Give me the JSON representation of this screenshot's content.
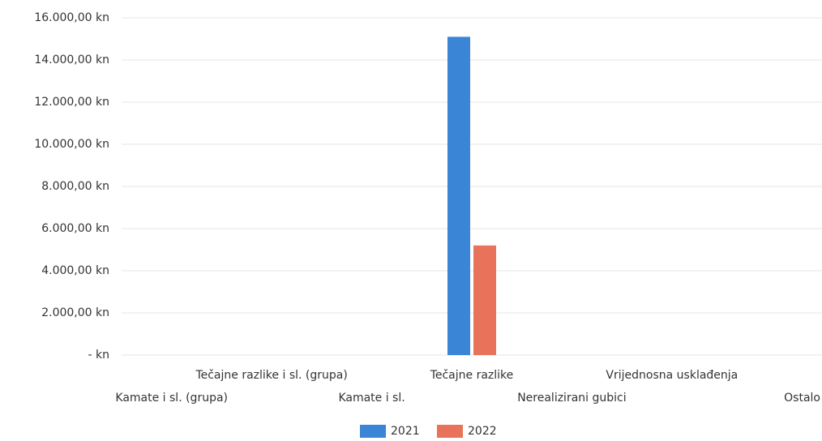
{
  "chart_data": {
    "type": "bar",
    "categories": [
      "Kamate i sl. (grupa)",
      "Tečajne razlike i sl. (grupa)",
      "Kamate i sl.",
      "Tečajne razlike",
      "Nerealizirani gubici",
      "Vrijednosna usklađenja",
      "Ostalo"
    ],
    "series": [
      {
        "name": "2021",
        "color": "#3a85d6",
        "values": [
          0,
          0,
          0,
          15100,
          0,
          0,
          0
        ]
      },
      {
        "name": "2022",
        "color": "#e8735a",
        "values": [
          0,
          0,
          0,
          5200,
          0,
          0,
          0
        ]
      }
    ],
    "ylim": [
      0,
      16000
    ],
    "yticks": [
      {
        "value": 0,
        "label": "-   kn"
      },
      {
        "value": 2000,
        "label": "2.000,00 kn"
      },
      {
        "value": 4000,
        "label": "4.000,00 kn"
      },
      {
        "value": 6000,
        "label": "6.000,00 kn"
      },
      {
        "value": 8000,
        "label": "8.000,00 kn"
      },
      {
        "value": 10000,
        "label": "10.000,00 kn"
      },
      {
        "value": 12000,
        "label": "12.000,00 kn"
      },
      {
        "value": 14000,
        "label": "14.000,00 kn"
      },
      {
        "value": 16000,
        "label": "16.000,00 kn"
      }
    ],
    "grid": true,
    "legend": "bottom"
  }
}
